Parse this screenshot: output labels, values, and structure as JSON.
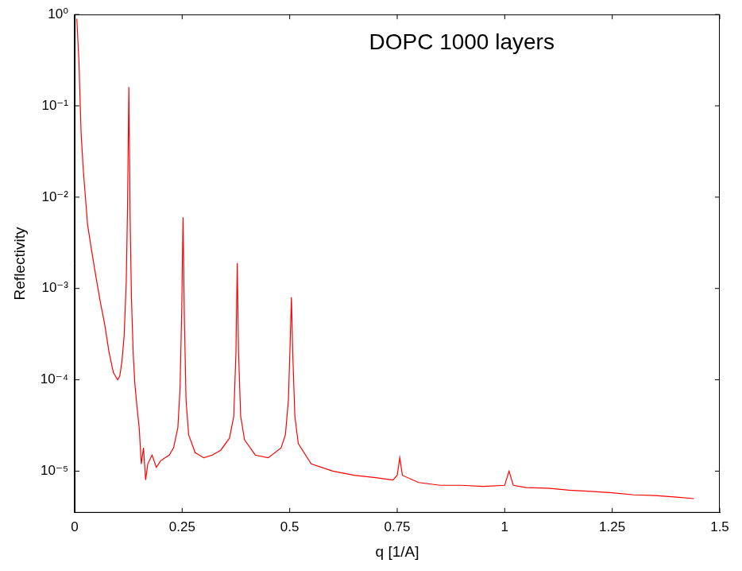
{
  "chart_data": {
    "type": "line",
    "title": "DOPC 1000 layers",
    "x_label": "q [1/A]",
    "y_label": "Reflectivity",
    "log": "y",
    "grid": false,
    "xlim": [
      0,
      1.5
    ],
    "xticks": [
      0,
      0.25,
      0.5,
      0.75,
      1,
      1.25,
      1.5
    ],
    "ylim": [
      3.5e-06,
      1
    ],
    "yticks": [
      {
        "value": 1e-05,
        "label": "10⁻⁵"
      },
      {
        "value": 0.0001,
        "label": "10⁻⁴"
      },
      {
        "value": 0.001,
        "label": "10⁻³"
      },
      {
        "value": 0.01,
        "label": "10⁻²"
      },
      {
        "value": 0.1,
        "label": "10⁻¹"
      },
      {
        "value": 1,
        "label": "10⁰"
      }
    ],
    "color": "#ff0000",
    "x": [
      0.005,
      0.01,
      0.015,
      0.02,
      0.03,
      0.04,
      0.05,
      0.06,
      0.07,
      0.08,
      0.09,
      0.1,
      0.105,
      0.11,
      0.115,
      0.12,
      0.123,
      0.126,
      0.129,
      0.132,
      0.136,
      0.14,
      0.145,
      0.15,
      0.155,
      0.16,
      0.165,
      0.17,
      0.18,
      0.19,
      0.2,
      0.21,
      0.22,
      0.23,
      0.24,
      0.245,
      0.249,
      0.252,
      0.255,
      0.259,
      0.265,
      0.28,
      0.3,
      0.32,
      0.34,
      0.36,
      0.37,
      0.375,
      0.378,
      0.381,
      0.386,
      0.395,
      0.42,
      0.45,
      0.48,
      0.49,
      0.497,
      0.501,
      0.504,
      0.507,
      0.512,
      0.52,
      0.55,
      0.6,
      0.65,
      0.7,
      0.74,
      0.75,
      0.756,
      0.762,
      0.8,
      0.85,
      0.9,
      0.95,
      1.0,
      1.01,
      1.02,
      1.05,
      1.1,
      1.15,
      1.2,
      1.25,
      1.3,
      1.35,
      1.4,
      1.44
    ],
    "values": [
      0.9,
      0.3,
      0.05,
      0.02,
      0.005,
      0.0025,
      0.0013,
      0.0007,
      0.0004,
      0.0002,
      0.00012,
      0.0001,
      0.00011,
      0.00016,
      0.0003,
      0.0012,
      0.008,
      0.16,
      0.006,
      0.0008,
      0.0002,
      9e-05,
      5e-05,
      3e-05,
      1.2e-05,
      1.8e-05,
      8e-06,
      1.2e-05,
      1.5e-05,
      1.1e-05,
      1.3e-05,
      1.4e-05,
      1.5e-05,
      1.8e-05,
      3e-05,
      8e-05,
      0.0006,
      0.006,
      0.0005,
      6e-05,
      2.5e-05,
      1.6e-05,
      1.4e-05,
      1.5e-05,
      1.7e-05,
      2.3e-05,
      4e-05,
      0.0002,
      0.0019,
      0.0002,
      4e-05,
      2.2e-05,
      1.5e-05,
      1.4e-05,
      1.8e-05,
      2.5e-05,
      6e-05,
      0.00025,
      0.0008,
      0.0002,
      4e-05,
      2e-05,
      1.2e-05,
      1e-05,
      9e-06,
      8.5e-06,
      8e-06,
      9e-06,
      1.4e-05,
      9e-06,
      7.5e-06,
      7e-06,
      7e-06,
      6.8e-06,
      7e-06,
      1e-05,
      7e-06,
      6.6e-06,
      6.5e-06,
      6.2e-06,
      6e-06,
      5.8e-06,
      5.5e-06,
      5.4e-06,
      5.2e-06,
      5e-06
    ]
  }
}
